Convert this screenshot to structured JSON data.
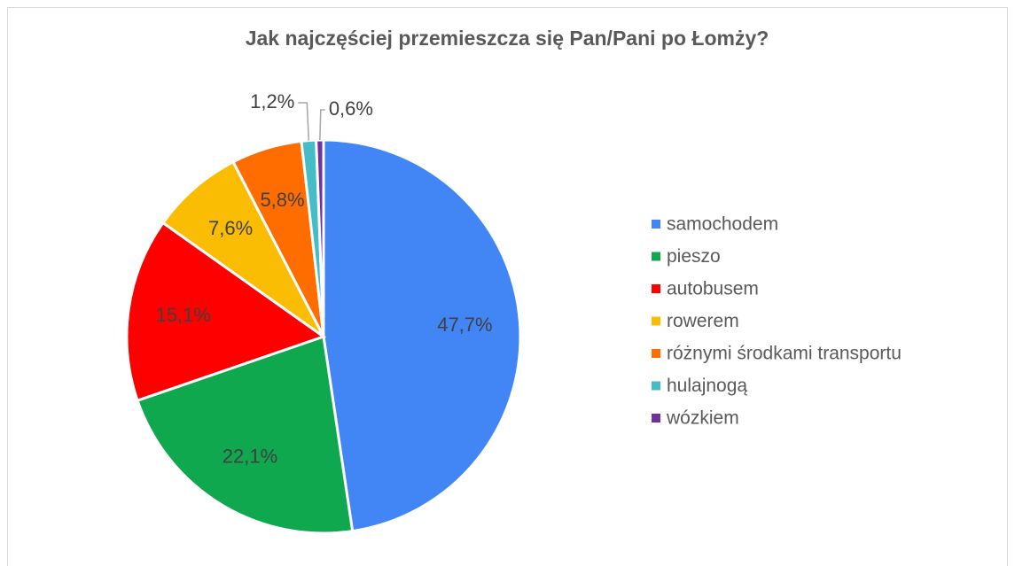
{
  "chart_data": {
    "type": "pie",
    "title": "Jak najczęściej przemieszcza się Pan/Pani po Łomży?",
    "categories": [
      "samochodem",
      "pieszo",
      "autobusem",
      "rowerem",
      "różnymi środkami transportu",
      "hulajnogą",
      "wózkiem"
    ],
    "values": [
      47.7,
      22.1,
      15.1,
      7.6,
      5.8,
      1.2,
      0.6
    ],
    "value_labels": [
      "47,7%",
      "22,1%",
      "15,1%",
      "7,6%",
      "5,8%",
      "1,2%",
      "0,6%"
    ],
    "colors": [
      "#4285f4",
      "#0fa84e",
      "#ff0000",
      "#fbbc04",
      "#ff6d01",
      "#46bdc6",
      "#7030a0"
    ],
    "legend": "right"
  }
}
